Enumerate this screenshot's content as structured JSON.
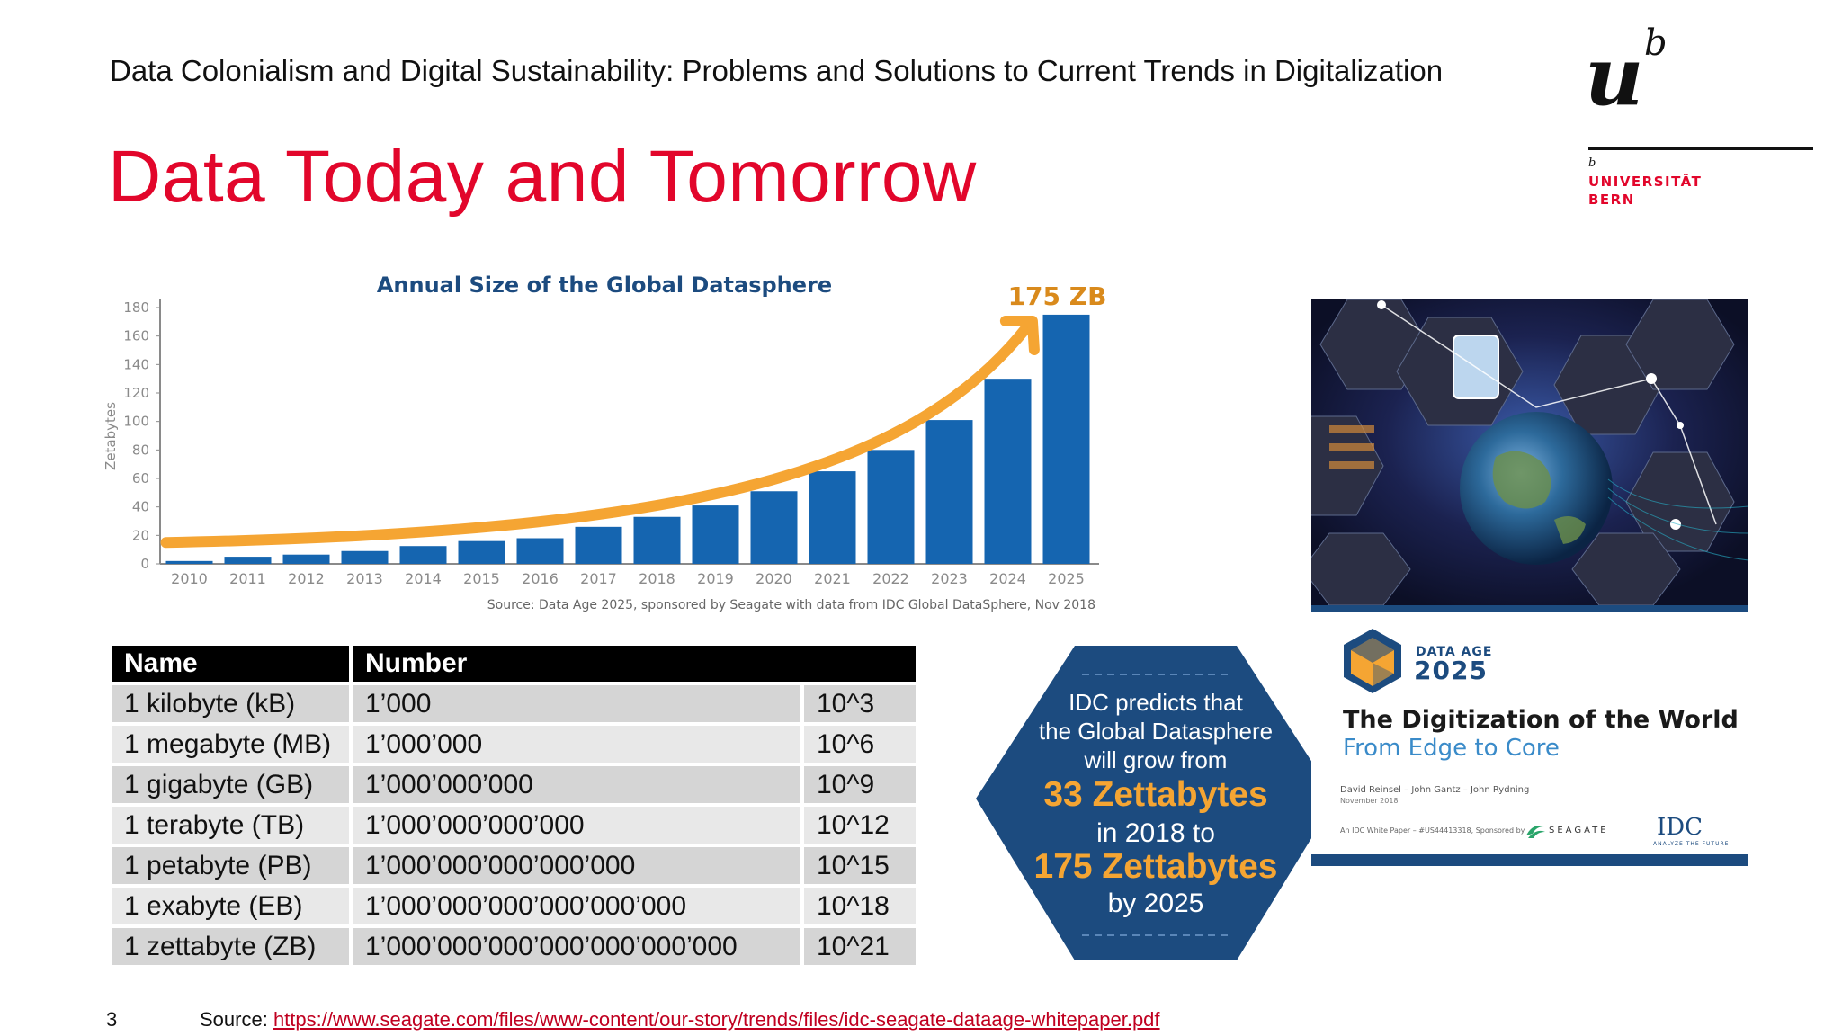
{
  "header": {
    "course_title": "Data Colonialism and Digital Sustainability: Problems and Solutions to Current Trends in Digitalization",
    "slide_title": "Data Today and Tomorrow"
  },
  "logo": {
    "mark_u": "u",
    "mark_b": "b",
    "small_b": "b",
    "line1": "UNIVERSITÄT",
    "line2": "BERN"
  },
  "chart_data": {
    "type": "bar",
    "title": "Annual Size of the Global Datasphere",
    "ylabel": "Zetabytes",
    "xlabel": "",
    "ylim": [
      0,
      180
    ],
    "yticks": [
      0,
      20,
      40,
      60,
      80,
      100,
      120,
      140,
      160,
      180
    ],
    "categories": [
      "2010",
      "2011",
      "2012",
      "2013",
      "2014",
      "2015",
      "2016",
      "2017",
      "2018",
      "2019",
      "2020",
      "2021",
      "2022",
      "2023",
      "2024",
      "2025"
    ],
    "values": [
      2,
      5,
      6.5,
      9,
      12.5,
      16,
      18,
      26,
      33,
      41,
      51,
      65,
      80,
      101,
      130,
      175
    ],
    "annotation": "175 ZB",
    "source": "Source: Data Age 2025, sponsored by Seagate with data from IDC Global DataSphere, Nov 2018",
    "colors": {
      "bar": "#1565b0",
      "trend": "#f5a533",
      "title": "#1c4b7f",
      "annotation": "#d98a1c",
      "axis": "#8a8a8a"
    }
  },
  "table": {
    "headers": [
      "Name",
      "Number"
    ],
    "rows": [
      {
        "name": "1 kilobyte (kB)",
        "number": "1’000",
        "power": "10^3"
      },
      {
        "name": "1 megabyte (MB)",
        "number": "1’000’000",
        "power": "10^6"
      },
      {
        "name": "1 gigabyte (GB)",
        "number": "1’000’000’000",
        "power": "10^9"
      },
      {
        "name": "1 terabyte (TB)",
        "number": "1’000’000’000’000",
        "power": "10^12"
      },
      {
        "name": "1 petabyte (PB)",
        "number": "1’000’000’000’000’000",
        "power": "10^15"
      },
      {
        "name": "1 exabyte (EB)",
        "number": "1’000’000’000’000’000’000",
        "power": "10^18"
      },
      {
        "name": "1 zettabyte (ZB)",
        "number": "1’000’000’000’000’000’000’000",
        "power": "10^21"
      }
    ]
  },
  "prediction": {
    "line1": "IDC predicts that",
    "line2": "the Global Datasphere",
    "line3": "will grow from",
    "value1": "33 Zettabytes",
    "line4": "in 2018 to",
    "value2": "175 Zettabytes",
    "line5": "by 2025",
    "colors": {
      "hex": "#1c4b7f",
      "highlight": "#f5a533",
      "text": "#ffffff"
    }
  },
  "cover": {
    "badge_small": "DATA AGE",
    "badge_year": "2025",
    "title": "The Digitization of the World",
    "subtitle": "From Edge to Core",
    "authors": "David Reinsel – John Gantz – John Rydning",
    "date": "November 2018",
    "footnote": "An IDC White Paper – #US44413318, Sponsored by",
    "sponsor": "SEAGATE",
    "idc_logo": "IDC",
    "idc_tagline": "ANALYZE THE FUTURE"
  },
  "footer": {
    "page_number": "3",
    "source_label": "Source: ",
    "source_url": "https://www.seagate.com/files/www-content/our-story/trends/files/idc-seagate-dataage-whitepaper.pdf"
  }
}
